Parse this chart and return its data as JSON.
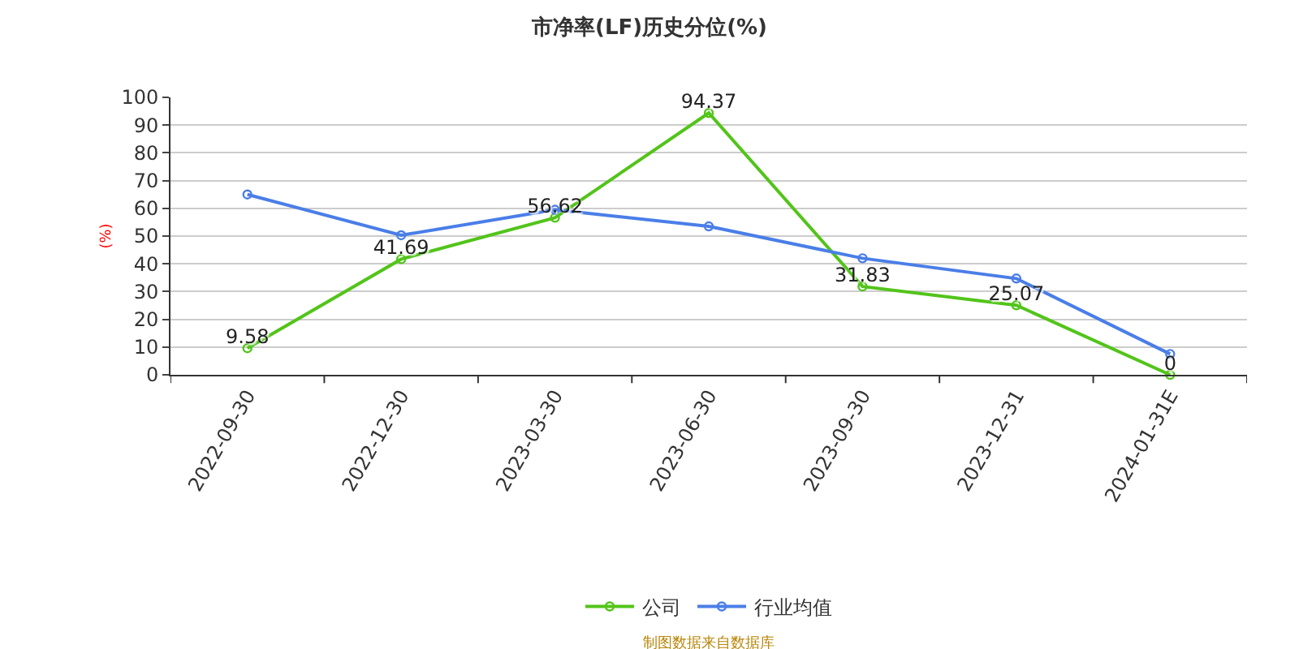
{
  "chart_data": {
    "type": "line",
    "title": "市净率(LF)历史分位(%)",
    "ylabel": "(%)",
    "categories": [
      "2022-09-30",
      "2022-12-30",
      "2023-03-30",
      "2023-06-30",
      "2023-09-30",
      "2023-12-31",
      "2024-01-31E"
    ],
    "series": [
      {
        "name": "公司",
        "color": "#52c41a",
        "values": [
          9.58,
          41.69,
          56.62,
          94.37,
          31.83,
          25.07,
          0
        ],
        "value_labels": [
          "9.58",
          "41.69",
          "56.62",
          "94.37",
          "31.83",
          "25.07",
          "0"
        ]
      },
      {
        "name": "行业均值",
        "color": "#4a7ee8",
        "values": [
          65,
          50.3,
          59.5,
          53.5,
          42,
          34.7,
          7.5
        ]
      }
    ],
    "ylim": [
      0,
      100
    ],
    "yticks": [
      0,
      10,
      20,
      30,
      40,
      50,
      60,
      70,
      80,
      90,
      100
    ],
    "grid": "y",
    "legend": "bottom",
    "marker": "circle",
    "line_style": "solid",
    "annotations": [
      "制图数据来自数据库"
    ]
  }
}
